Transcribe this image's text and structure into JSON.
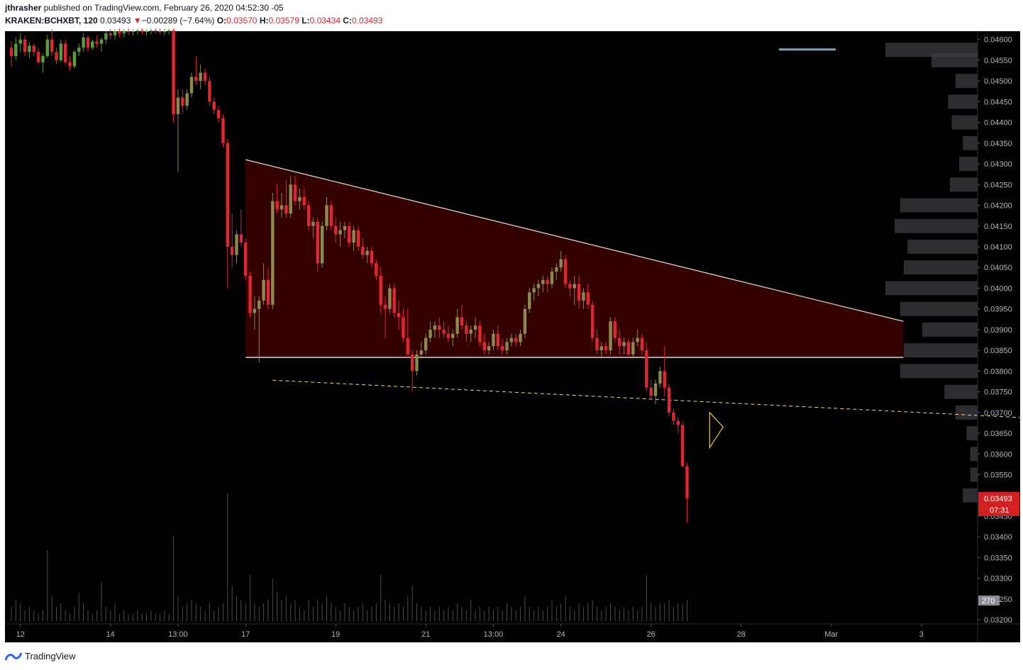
{
  "header": {
    "author": "jthrasher",
    "published_text": "published on TradingView.com, February 26, 2020 04:52:30 -05",
    "symbol": "KRAKEN:BCHXBT, 120",
    "last": "0.03493",
    "change_arrow": "▼",
    "change": "−0.00289 (−7.64%)",
    "o_label": "O:",
    "o": "0.03570",
    "h_label": "H:",
    "h": "0.03579",
    "l_label": "L:",
    "l": "0.03434",
    "c_label": "C:",
    "c": "0.03493"
  },
  "footer": {
    "brand": "TradingView",
    "logo_icon": "tradingview-logo-icon"
  },
  "colors": {
    "background": "#000000",
    "up": "#8a8a4a",
    "down": "#e0262f",
    "early_up": "#5a9e3a",
    "pattern_fill": "#330000",
    "support_line": "#f0e060",
    "price_badge": "#d42020",
    "volume": "#4a4a4a",
    "volume_profile": "#3c3c42"
  },
  "price_label": {
    "value": "0.03493",
    "countdown": "07:31"
  },
  "volume_label": "270",
  "chart_data": {
    "type": "candlestick",
    "title": "",
    "symbol": "KRAKEN:BCHXBT",
    "interval": "120",
    "y_axis": {
      "position": "right",
      "ylim": [
        0.0319,
        0.0462
      ],
      "tick_labels": [
        "0.04600",
        "0.04550",
        "0.04500",
        "0.04450",
        "0.04400",
        "0.04350",
        "0.04300",
        "0.04250",
        "0.04200",
        "0.04150",
        "0.04100",
        "0.04050",
        "0.04000",
        "0.03950",
        "0.03900",
        "0.03850",
        "0.03800",
        "0.03750",
        "0.03700",
        "0.03650",
        "0.03600",
        "0.03550",
        "0.03500",
        "0.03450",
        "0.03400",
        "0.03350",
        "0.03300",
        "0.03250",
        "0.03200"
      ]
    },
    "x_axis": {
      "tick_labels": [
        "12",
        "14",
        "13:00",
        "17",
        "19",
        "21",
        "13:00",
        "24",
        "26",
        "28",
        "Mar",
        "3"
      ],
      "bar_index": [
        2,
        22,
        37,
        52,
        72,
        92,
        107,
        122,
        142,
        162,
        182,
        202
      ]
    },
    "candles": [
      [
        0.0458,
        0.04595,
        0.04535,
        0.0456,
        4
      ],
      [
        0.0456,
        0.04605,
        0.0455,
        0.0459,
        6
      ],
      [
        0.0459,
        0.04615,
        0.0457,
        0.046,
        5
      ],
      [
        0.046,
        0.0461,
        0.0456,
        0.0457,
        3
      ],
      [
        0.0457,
        0.04595,
        0.04555,
        0.04585,
        4
      ],
      [
        0.04585,
        0.0459,
        0.0456,
        0.0457,
        3
      ],
      [
        0.0457,
        0.0458,
        0.0454,
        0.04545,
        2
      ],
      [
        0.04545,
        0.04565,
        0.0452,
        0.0456,
        3
      ],
      [
        0.0456,
        0.0461,
        0.04555,
        0.046,
        20
      ],
      [
        0.046,
        0.04625,
        0.0456,
        0.0457,
        7
      ],
      [
        0.0457,
        0.0458,
        0.0454,
        0.0455,
        4
      ],
      [
        0.0455,
        0.046,
        0.04545,
        0.0459,
        5
      ],
      [
        0.0459,
        0.046,
        0.0454,
        0.04545,
        3
      ],
      [
        0.04545,
        0.0456,
        0.04525,
        0.04535,
        2
      ],
      [
        0.04535,
        0.04575,
        0.0453,
        0.0457,
        4
      ],
      [
        0.0457,
        0.0459,
        0.0456,
        0.0458,
        8
      ],
      [
        0.0458,
        0.04615,
        0.0457,
        0.04605,
        5
      ],
      [
        0.04605,
        0.0461,
        0.0457,
        0.0458,
        3
      ],
      [
        0.0458,
        0.046,
        0.04575,
        0.04595,
        2
      ],
      [
        0.04595,
        0.0461,
        0.0458,
        0.0459,
        3
      ],
      [
        0.0459,
        0.04605,
        0.0457,
        0.046,
        11
      ],
      [
        0.046,
        0.0462,
        0.0459,
        0.04615,
        4
      ],
      [
        0.04615,
        0.04625,
        0.046,
        0.0461,
        3
      ],
      [
        0.0461,
        0.04625,
        0.046,
        0.0462,
        5
      ],
      [
        0.0462,
        0.0463,
        0.04605,
        0.04615,
        2
      ],
      [
        0.04615,
        0.04625,
        0.04605,
        0.0462,
        3
      ],
      [
        0.0462,
        0.04628,
        0.0461,
        0.04618,
        2
      ],
      [
        0.04618,
        0.04625,
        0.0461,
        0.0462,
        2
      ],
      [
        0.0462,
        0.04628,
        0.04612,
        0.04622,
        3
      ],
      [
        0.04622,
        0.0463,
        0.04612,
        0.04618,
        2
      ],
      [
        0.04618,
        0.04625,
        0.0461,
        0.0462,
        2
      ],
      [
        0.0462,
        0.04628,
        0.04612,
        0.04622,
        3
      ],
      [
        0.04622,
        0.0463,
        0.04615,
        0.0462,
        2
      ],
      [
        0.0462,
        0.04628,
        0.04612,
        0.04618,
        2
      ],
      [
        0.04618,
        0.04626,
        0.0461,
        0.0462,
        3
      ],
      [
        0.0462,
        0.04628,
        0.04612,
        0.04622,
        2
      ],
      [
        0.04622,
        0.0463,
        0.044,
        0.0442,
        24
      ],
      [
        0.0442,
        0.0448,
        0.0428,
        0.0446,
        7
      ],
      [
        0.0446,
        0.0448,
        0.0442,
        0.0444,
        4
      ],
      [
        0.0444,
        0.0448,
        0.0443,
        0.0447,
        5
      ],
      [
        0.0447,
        0.0452,
        0.0446,
        0.0451,
        6
      ],
      [
        0.0451,
        0.0456,
        0.0449,
        0.045,
        5
      ],
      [
        0.045,
        0.0454,
        0.0448,
        0.0452,
        4
      ],
      [
        0.0452,
        0.0453,
        0.0449,
        0.045,
        3
      ],
      [
        0.045,
        0.0451,
        0.0444,
        0.0445,
        5
      ],
      [
        0.0445,
        0.0446,
        0.0442,
        0.0443,
        3
      ],
      [
        0.0443,
        0.0444,
        0.044,
        0.0441,
        4
      ],
      [
        0.0441,
        0.0442,
        0.0434,
        0.0435,
        5
      ],
      [
        0.0435,
        0.0436,
        0.04,
        0.041,
        36
      ],
      [
        0.041,
        0.0418,
        0.0405,
        0.0408,
        10
      ],
      [
        0.0408,
        0.0414,
        0.0406,
        0.0413,
        7
      ],
      [
        0.0413,
        0.0419,
        0.041,
        0.0411,
        6
      ],
      [
        0.0411,
        0.0412,
        0.0402,
        0.0403,
        5
      ],
      [
        0.0403,
        0.0404,
        0.0393,
        0.0394,
        13
      ],
      [
        0.0394,
        0.0398,
        0.039,
        0.0395,
        5
      ],
      [
        0.0395,
        0.0398,
        0.0382,
        0.0397,
        4
      ],
      [
        0.0397,
        0.0406,
        0.0396,
        0.0402,
        5
      ],
      [
        0.0402,
        0.0405,
        0.0395,
        0.0396,
        6
      ],
      [
        0.0396,
        0.0423,
        0.0395,
        0.0421,
        12
      ],
      [
        0.0421,
        0.0425,
        0.0418,
        0.0419,
        8
      ],
      [
        0.0419,
        0.0423,
        0.0417,
        0.042,
        6
      ],
      [
        0.042,
        0.0426,
        0.0417,
        0.0418,
        7
      ],
      [
        0.0418,
        0.0427,
        0.0417,
        0.0425,
        5
      ],
      [
        0.0425,
        0.0427,
        0.042,
        0.0421,
        6
      ],
      [
        0.0421,
        0.0424,
        0.0419,
        0.0422,
        4
      ],
      [
        0.0422,
        0.0424,
        0.0419,
        0.042,
        3
      ],
      [
        0.042,
        0.0421,
        0.0414,
        0.0415,
        6
      ],
      [
        0.0415,
        0.0417,
        0.0412,
        0.0416,
        4
      ],
      [
        0.0416,
        0.0417,
        0.0404,
        0.0406,
        6
      ],
      [
        0.0406,
        0.0416,
        0.0405,
        0.0415,
        5
      ],
      [
        0.0415,
        0.0422,
        0.0414,
        0.042,
        7
      ],
      [
        0.042,
        0.0421,
        0.0414,
        0.0415,
        5
      ],
      [
        0.0415,
        0.0417,
        0.0411,
        0.0413,
        4
      ],
      [
        0.0413,
        0.0416,
        0.041,
        0.0414,
        3
      ],
      [
        0.0414,
        0.0416,
        0.0412,
        0.0415,
        5
      ],
      [
        0.0415,
        0.0416,
        0.041,
        0.0411,
        4
      ],
      [
        0.0411,
        0.0415,
        0.0409,
        0.0414,
        3
      ],
      [
        0.0414,
        0.0415,
        0.0409,
        0.041,
        4
      ],
      [
        0.041,
        0.0412,
        0.0407,
        0.0408,
        5
      ],
      [
        0.0408,
        0.041,
        0.0406,
        0.0409,
        3
      ],
      [
        0.0409,
        0.041,
        0.0405,
        0.0406,
        4
      ],
      [
        0.0406,
        0.0407,
        0.0402,
        0.0403,
        5
      ],
      [
        0.0403,
        0.0405,
        0.0394,
        0.0396,
        13
      ],
      [
        0.0396,
        0.0398,
        0.0388,
        0.0395,
        6
      ],
      [
        0.0395,
        0.0401,
        0.0394,
        0.04,
        5
      ],
      [
        0.04,
        0.0401,
        0.0393,
        0.0394,
        4
      ],
      [
        0.0394,
        0.0397,
        0.039,
        0.0393,
        5
      ],
      [
        0.0393,
        0.0395,
        0.0387,
        0.0388,
        4
      ],
      [
        0.0388,
        0.0395,
        0.0383,
        0.0384,
        7
      ],
      [
        0.0384,
        0.0385,
        0.0375,
        0.038,
        10
      ],
      [
        0.038,
        0.0385,
        0.0379,
        0.0384,
        5
      ],
      [
        0.0384,
        0.0387,
        0.0383,
        0.0385,
        4
      ],
      [
        0.0385,
        0.0389,
        0.0384,
        0.0388,
        3
      ],
      [
        0.0388,
        0.0392,
        0.0387,
        0.039,
        4
      ],
      [
        0.039,
        0.0392,
        0.0388,
        0.0391,
        3
      ],
      [
        0.0391,
        0.0393,
        0.0388,
        0.039,
        4
      ],
      [
        0.039,
        0.0392,
        0.0388,
        0.0389,
        3
      ],
      [
        0.0389,
        0.0391,
        0.0387,
        0.0388,
        4
      ],
      [
        0.0388,
        0.039,
        0.0386,
        0.0389,
        3
      ],
      [
        0.0389,
        0.0395,
        0.0388,
        0.0393,
        5
      ],
      [
        0.0393,
        0.0396,
        0.039,
        0.0391,
        4
      ],
      [
        0.0391,
        0.0392,
        0.0387,
        0.0389,
        3
      ],
      [
        0.0389,
        0.0391,
        0.0387,
        0.039,
        6
      ],
      [
        0.039,
        0.0393,
        0.0388,
        0.0391,
        3
      ],
      [
        0.0391,
        0.0392,
        0.0386,
        0.0387,
        4
      ],
      [
        0.0387,
        0.0389,
        0.0384,
        0.0385,
        3
      ],
      [
        0.0385,
        0.0387,
        0.0384,
        0.0386,
        4
      ],
      [
        0.0386,
        0.039,
        0.0385,
        0.0389,
        3
      ],
      [
        0.0389,
        0.0391,
        0.0385,
        0.0386,
        4
      ],
      [
        0.0386,
        0.0388,
        0.0384,
        0.0385,
        3
      ],
      [
        0.0385,
        0.0388,
        0.0384,
        0.0387,
        5
      ],
      [
        0.0387,
        0.0389,
        0.0386,
        0.0388,
        4
      ],
      [
        0.0388,
        0.0389,
        0.0386,
        0.0387,
        3
      ],
      [
        0.0387,
        0.039,
        0.0386,
        0.0389,
        4
      ],
      [
        0.0389,
        0.0396,
        0.0388,
        0.0395,
        7
      ],
      [
        0.0395,
        0.04,
        0.0394,
        0.0399,
        4
      ],
      [
        0.0399,
        0.0401,
        0.0397,
        0.04,
        3
      ],
      [
        0.04,
        0.0402,
        0.0398,
        0.0401,
        4
      ],
      [
        0.0401,
        0.0403,
        0.0399,
        0.0402,
        3
      ],
      [
        0.0402,
        0.0403,
        0.0399,
        0.0401,
        4
      ],
      [
        0.0401,
        0.0405,
        0.04,
        0.0404,
        6
      ],
      [
        0.0404,
        0.0406,
        0.0402,
        0.0405,
        4
      ],
      [
        0.0405,
        0.0409,
        0.0404,
        0.0407,
        5
      ],
      [
        0.0407,
        0.0408,
        0.04,
        0.0401,
        7
      ],
      [
        0.0401,
        0.0402,
        0.0398,
        0.04,
        4
      ],
      [
        0.04,
        0.0403,
        0.0396,
        0.0401,
        3
      ],
      [
        0.0401,
        0.0403,
        0.0395,
        0.0397,
        5
      ],
      [
        0.0397,
        0.04,
        0.0395,
        0.0399,
        4
      ],
      [
        0.0399,
        0.0401,
        0.0395,
        0.0396,
        5
      ],
      [
        0.0396,
        0.0397,
        0.0387,
        0.0388,
        6
      ],
      [
        0.0388,
        0.039,
        0.0384,
        0.0385,
        4
      ],
      [
        0.0385,
        0.0387,
        0.0383,
        0.0386,
        3
      ],
      [
        0.0386,
        0.0387,
        0.0384,
        0.0385,
        4
      ],
      [
        0.0385,
        0.0393,
        0.0384,
        0.0392,
        5
      ],
      [
        0.0392,
        0.0393,
        0.0387,
        0.0388,
        4
      ],
      [
        0.0388,
        0.039,
        0.0384,
        0.0386,
        3
      ],
      [
        0.0386,
        0.0388,
        0.0384,
        0.0387,
        4
      ],
      [
        0.0387,
        0.0388,
        0.0383,
        0.0384,
        3
      ],
      [
        0.0384,
        0.0388,
        0.0383,
        0.0387,
        4
      ],
      [
        0.0387,
        0.039,
        0.0386,
        0.0388,
        3
      ],
      [
        0.0388,
        0.0389,
        0.0384,
        0.0385,
        4
      ],
      [
        0.0385,
        0.0387,
        0.0375,
        0.0376,
        13
      ],
      [
        0.0376,
        0.0378,
        0.0373,
        0.0374,
        5
      ],
      [
        0.0374,
        0.0378,
        0.0372,
        0.0377,
        4
      ],
      [
        0.0377,
        0.0381,
        0.0376,
        0.038,
        5
      ],
      [
        0.038,
        0.0386,
        0.0374,
        0.0376,
        5
      ],
      [
        0.0376,
        0.0377,
        0.0369,
        0.037,
        6
      ],
      [
        0.037,
        0.0371,
        0.0367,
        0.0368,
        4
      ],
      [
        0.0368,
        0.0369,
        0.0365,
        0.0367,
        5
      ],
      [
        0.0367,
        0.0368,
        0.0357,
        0.0357,
        5
      ],
      [
        0.0357,
        0.03579,
        0.03434,
        0.03493,
        6
      ]
    ],
    "candle_fields": [
      "open",
      "high",
      "low",
      "close",
      "volume"
    ],
    "drawings": {
      "descending_triangle": {
        "from": {
          "bar": 52,
          "price": 0.0431
        },
        "peak": {
          "bar": 198,
          "price": 0.0392
        },
        "support_price": 0.03833,
        "support_end_bar": 198
      },
      "support_trendline_dashed": {
        "from": {
          "bar": 58,
          "price": 0.03778
        },
        "to": {
          "bar": 233,
          "price": 0.03683
        }
      },
      "pennant": [
        {
          "bar": 155,
          "price": 0.037
        },
        {
          "bar": 158,
          "price": 0.03665
        },
        {
          "bar": 155,
          "price": 0.03615
        }
      ]
    },
    "volume_profile": {
      "price_levels": [
        0.04575,
        0.0455,
        0.045,
        0.0445,
        0.044,
        0.0435,
        0.043,
        0.0425,
        0.042,
        0.0415,
        0.041,
        0.0405,
        0.04,
        0.0395,
        0.039,
        0.0385,
        0.038,
        0.0375,
        0.037,
        0.0365,
        0.036,
        0.0355,
        0.035
      ],
      "relative_volume": [
        0.5,
        0.25,
        0.12,
        0.16,
        0.14,
        0.08,
        0.1,
        0.15,
        0.42,
        0.45,
        0.38,
        0.4,
        0.5,
        0.42,
        0.3,
        0.4,
        0.42,
        0.18,
        0.12,
        0.06,
        0.04,
        0.04,
        0.08
      ]
    },
    "last_price": 0.03493
  }
}
